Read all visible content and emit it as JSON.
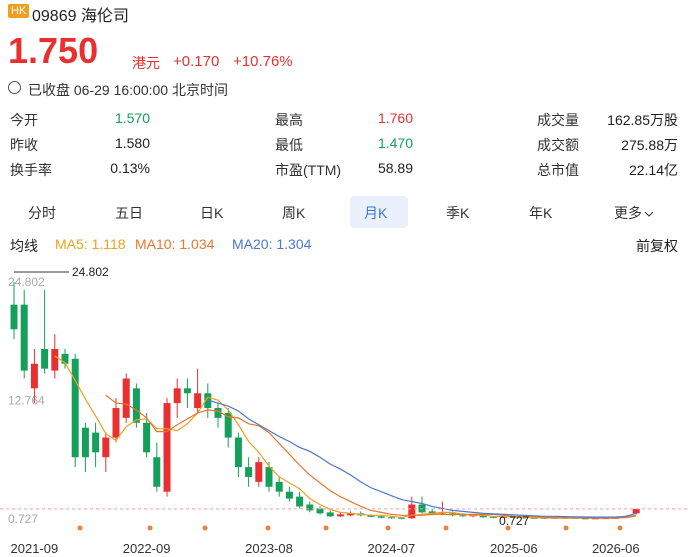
{
  "header": {
    "badge": "HK",
    "code": "09869",
    "name": "海伦司"
  },
  "quote": {
    "price": "1.750",
    "currency": "港元",
    "change": "+0.170",
    "change_pct": "+10.76%",
    "status": "已收盘 06-29 16:00:00 北京时间"
  },
  "stats": [
    {
      "label": "今开",
      "value": "1.570",
      "color": "#14a05a"
    },
    {
      "label": "最高",
      "value": "1.760",
      "color": "#e93030"
    },
    {
      "label": "成交量",
      "value": "162.85万股",
      "color": "#222222"
    },
    {
      "label": "昨收",
      "value": "1.580",
      "color": "#222222"
    },
    {
      "label": "最低",
      "value": "1.470",
      "color": "#14a05a"
    },
    {
      "label": "成交额",
      "value": "275.88万",
      "color": "#222222"
    },
    {
      "label": "换手率",
      "value": "0.13%",
      "color": "#222222"
    },
    {
      "label": "市盈(TTM)",
      "value": "58.89",
      "color": "#222222"
    },
    {
      "label": "总市值",
      "value": "22.14亿",
      "color": "#222222"
    }
  ],
  "tabs": [
    "分时",
    "五日",
    "日K",
    "周K",
    "月K",
    "季K",
    "年K",
    "更多"
  ],
  "selected_tab": "月K",
  "ma_label": "均线",
  "adjust": "前复权",
  "chart_data": {
    "type": "candlestick",
    "categories": [
      null,
      null,
      "2021-09",
      null,
      null,
      null,
      null,
      null,
      null,
      null,
      null,
      null,
      null,
      "2022-09",
      null,
      null,
      null,
      null,
      null,
      null,
      null,
      null,
      null,
      null,
      null,
      "2023-08",
      null,
      null,
      null,
      null,
      null,
      null,
      null,
      null,
      null,
      null,
      null,
      "2024-07",
      null,
      null,
      null,
      null,
      null,
      null,
      null,
      null,
      null,
      null,
      null,
      "2025-06",
      null,
      null,
      null,
      null,
      null,
      null,
      null,
      null,
      null,
      "2026-06",
      null,
      null
    ],
    "open": [
      22.5,
      22.5,
      14,
      18,
      15.8,
      17.5,
      17,
      10,
      9.5,
      7,
      9,
      11,
      14,
      10.5,
      7,
      3.5,
      12.5,
      14,
      12,
      13.5,
      12,
      11.5,
      9,
      6,
      4.5,
      6,
      4.5,
      3.5,
      3,
      2.2,
      1.8,
      1.4,
      1,
      1.1,
      1.3,
      1.1,
      1,
      0.9,
      0.85,
      0.8,
      2.2,
      1.5,
      1.2,
      1.3,
      1.1,
      1,
      1.1,
      0.95,
      0.9,
      0.95,
      0.9,
      0.85,
      0.75,
      0.85,
      0.8,
      0.85,
      0.8,
      0.78,
      0.8,
      0.82,
      0.85,
      1.3
    ],
    "high": [
      24.802,
      24,
      18,
      24,
      19.5,
      18,
      17.5,
      10.5,
      10.5,
      9.5,
      13,
      15.5,
      14.5,
      11.5,
      8.5,
      13,
      15,
      15,
      16,
      14.5,
      12.5,
      12,
      9.5,
      7,
      7,
      6.5,
      5,
      4,
      3.5,
      2.5,
      2,
      1.6,
      1.4,
      1.5,
      1.5,
      1.2,
      1.1,
      1,
      0.9,
      3,
      3,
      1.8,
      2.5,
      1.5,
      1.3,
      1.2,
      1.2,
      1,
      1,
      1,
      0.95,
      0.9,
      0.9,
      0.9,
      0.9,
      0.9,
      0.85,
      0.85,
      0.85,
      0.9,
      1.1,
      1.76
    ],
    "low": [
      19,
      15,
      12.5,
      15.5,
      15,
      16,
      6,
      5.5,
      6,
      5.5,
      8.5,
      10.5,
      10,
      7,
      3.5,
      3,
      11,
      12,
      11.5,
      11,
      10,
      8,
      5,
      4,
      4,
      3.5,
      3,
      2.5,
      1.8,
      1.4,
      1.2,
      0.9,
      0.9,
      1,
      1,
      0.9,
      0.8,
      0.75,
      0.7,
      0.73,
      1.3,
      1.1,
      1.1,
      1,
      0.95,
      0.9,
      0.85,
      0.8,
      0.85,
      0.8,
      0.75,
      0.727,
      0.73,
      0.75,
      0.75,
      0.75,
      0.74,
      0.74,
      0.75,
      0.76,
      0.8,
      1.2
    ],
    "close": [
      20,
      15.8,
      16.5,
      16,
      18,
      16.5,
      7,
      7,
      7.5,
      9,
      12,
      15,
      10.5,
      7.5,
      4,
      12.5,
      14,
      13.5,
      13.5,
      12,
      11,
      9,
      6,
      5,
      6.5,
      4,
      3.5,
      2.8,
      2,
      1.6,
      1.3,
      1,
      1.2,
      1.3,
      1.1,
      0.95,
      0.85,
      0.8,
      0.75,
      2.2,
      1.4,
      1.2,
      1.3,
      1.1,
      1,
      1.1,
      0.9,
      0.9,
      0.95,
      0.85,
      0.8,
      0.75,
      0.85,
      0.8,
      0.85,
      0.8,
      0.78,
      0.8,
      0.82,
      0.85,
      1,
      1.75
    ],
    "up_color": "#e93030",
    "down_color": "#14a05a",
    "series": [
      {
        "name": "MA5: 1.118",
        "color": "#f0a020",
        "values": [
          null,
          null,
          null,
          null,
          17.3,
          16.6,
          14.8,
          12.9,
          11.2,
          9.4,
          8.7,
          10.1,
          10.8,
          10.9,
          9.9,
          9.9,
          9.7,
          10.4,
          11.5,
          13.1,
          12.8,
          11.8,
          10.3,
          8.6,
          7.5,
          6.1,
          5,
          4.4,
          3.8,
          2.8,
          2.2,
          1.7,
          1.4,
          1.3,
          1.2,
          1.1,
          1.1,
          1,
          0.9,
          1.1,
          1.2,
          1.3,
          1.4,
          1.4,
          1.2,
          1.1,
          1.1,
          1,
          0.97,
          0.94,
          0.89,
          0.85,
          0.84,
          0.81,
          0.81,
          0.81,
          0.82,
          0.81,
          0.81,
          0.83,
          0.95,
          1.118
        ]
      },
      {
        "name": "MA10: 1.034",
        "color": "#e8772e",
        "values": [
          null,
          null,
          null,
          null,
          null,
          null,
          null,
          null,
          null,
          13.3,
          12.5,
          12.4,
          11.8,
          11,
          9.6,
          9.6,
          10.3,
          10.9,
          11.5,
          11.8,
          11.7,
          11.1,
          11,
          10.4,
          10.2,
          9.5,
          8.4,
          7.3,
          6.2,
          5.2,
          4.4,
          3.6,
          3,
          2.5,
          2,
          1.6,
          1.4,
          1.2,
          1.1,
          1.1,
          1.1,
          1.2,
          1.2,
          1.2,
          1.2,
          1.2,
          1.2,
          1.2,
          1.1,
          1,
          1,
          0.95,
          0.9,
          0.88,
          0.86,
          0.84,
          0.83,
          0.82,
          0.82,
          0.83,
          0.88,
          1.034
        ]
      },
      {
        "name": "MA20: 1.304",
        "color": "#4a78d0",
        "values": [
          null,
          null,
          null,
          null,
          null,
          null,
          null,
          null,
          null,
          null,
          null,
          null,
          null,
          null,
          null,
          null,
          null,
          null,
          null,
          12.8,
          12.5,
          12.2,
          11.7,
          10.9,
          10.3,
          9.7,
          9.1,
          8.6,
          8,
          7.6,
          7,
          6.3,
          5.8,
          5.2,
          4.5,
          3.9,
          3.5,
          3.1,
          2.7,
          2.5,
          2.3,
          2,
          1.8,
          1.6,
          1.5,
          1.4,
          1.3,
          1.25,
          1.2,
          1.15,
          1.1,
          1.05,
          1,
          1,
          0.97,
          0.95,
          0.93,
          0.92,
          0.92,
          0.93,
          1,
          1.304
        ]
      }
    ],
    "ylim": [
      0.727,
      24.802
    ],
    "yticks": [
      0.727,
      12.764,
      24.802
    ],
    "grid": false,
    "high_label": 24.802,
    "low_label": 0.727
  }
}
